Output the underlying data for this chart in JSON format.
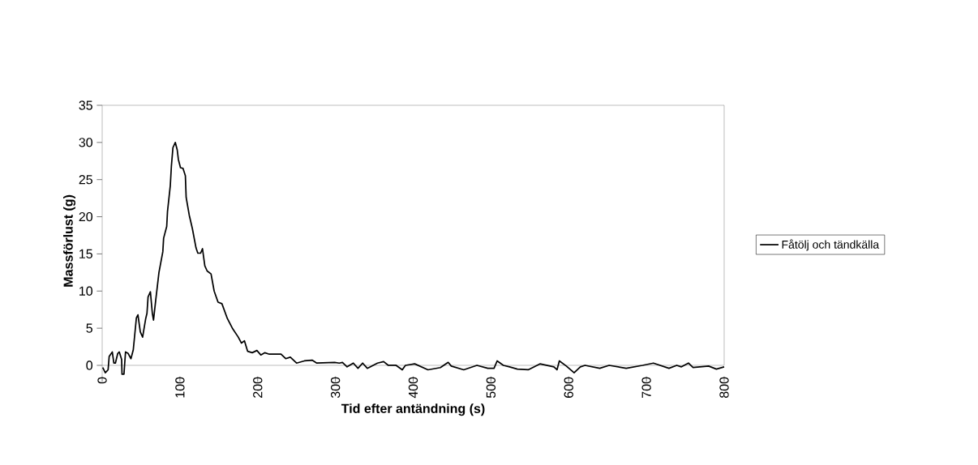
{
  "chart_data": {
    "type": "line",
    "xlabel": "Tid efter antändning (s)",
    "ylabel": "Massförlust (g)",
    "xlim": [
      0,
      800
    ],
    "xticks": [
      0,
      100,
      200,
      300,
      400,
      500,
      600,
      700,
      800
    ],
    "ylim": [
      -1.5,
      35
    ],
    "yticks": [
      0,
      5,
      10,
      15,
      20,
      25,
      30,
      35
    ],
    "grid": false,
    "legend": "right",
    "marker": "none",
    "line_style": "solid",
    "series": [
      {
        "name": "Fåtölj och tändkälla",
        "color": "#000000",
        "x": [
          0.7,
          4,
          7.6,
          9,
          13,
          15,
          17,
          20,
          22,
          25,
          25.5,
          28,
          30,
          33.4,
          37,
          40,
          44,
          46,
          49,
          52,
          56,
          57.6,
          59,
          62,
          64.5,
          66,
          69,
          73,
          78,
          79,
          83,
          84,
          87.6,
          89,
          91,
          94,
          96.5,
          98,
          100.7,
          104,
          107,
          108,
          112,
          116,
          120.7,
          123,
          126.6,
          129,
          132,
          135,
          140,
          144,
          149,
          154,
          161,
          168,
          175,
          179,
          183,
          187,
          193,
          199,
          204,
          209,
          215,
          230,
          236,
          242,
          250,
          260,
          270,
          276,
          299,
          305,
          309,
          315,
          323,
          329,
          335,
          341,
          354,
          362,
          368,
          378,
          386,
          390,
          402,
          419,
          435,
          445,
          449,
          465,
          482,
          496,
          504,
          508,
          516,
          524,
          534,
          548,
          563,
          581,
          585,
          588,
          597,
          607,
          615,
          621,
          640,
          652,
          674,
          695,
          709,
          729,
          739,
          745,
          754,
          760,
          780,
          790,
          800
        ],
        "values": [
          -0.3,
          -1,
          -0.6,
          1.2,
          1.8,
          0.3,
          0.3,
          1.6,
          1.8,
          0.8,
          -1.2,
          -1.2,
          1.8,
          1.6,
          0.9,
          2.1,
          6.4,
          6.8,
          4.5,
          3.8,
          6.3,
          7,
          9.2,
          9.9,
          7,
          6.1,
          8.9,
          12.5,
          15.3,
          17.1,
          18.7,
          20.7,
          24.2,
          26.8,
          29.3,
          30,
          29,
          27.7,
          26.6,
          26.5,
          25.5,
          22.6,
          20.2,
          18.4,
          15.8,
          15.1,
          15.1,
          15.7,
          13.4,
          12.7,
          12.3,
          10,
          8.5,
          8.3,
          6.3,
          4.9,
          3.8,
          3,
          3.3,
          1.9,
          1.7,
          2,
          1.4,
          1.7,
          1.5,
          1.5,
          0.9,
          1.1,
          0.3,
          0.6,
          0.7,
          0.3,
          0.4,
          0.3,
          0.4,
          -0.2,
          0.3,
          -0.4,
          0.3,
          -0.4,
          0.3,
          0.5,
          0,
          0,
          -0.6,
          0,
          0.2,
          -0.6,
          -0.3,
          0.4,
          -0.1,
          -0.6,
          0,
          -0.4,
          -0.4,
          0.6,
          0,
          -0.2,
          -0.5,
          -0.6,
          0.2,
          -0.2,
          -0.6,
          0.6,
          -0.1,
          -1,
          -0.2,
          0,
          -0.4,
          0,
          -0.4,
          0,
          0.3,
          -0.4,
          0,
          -0.2,
          0.3,
          -0.3,
          -0.1,
          -0.5,
          -0.2
        ]
      }
    ]
  }
}
